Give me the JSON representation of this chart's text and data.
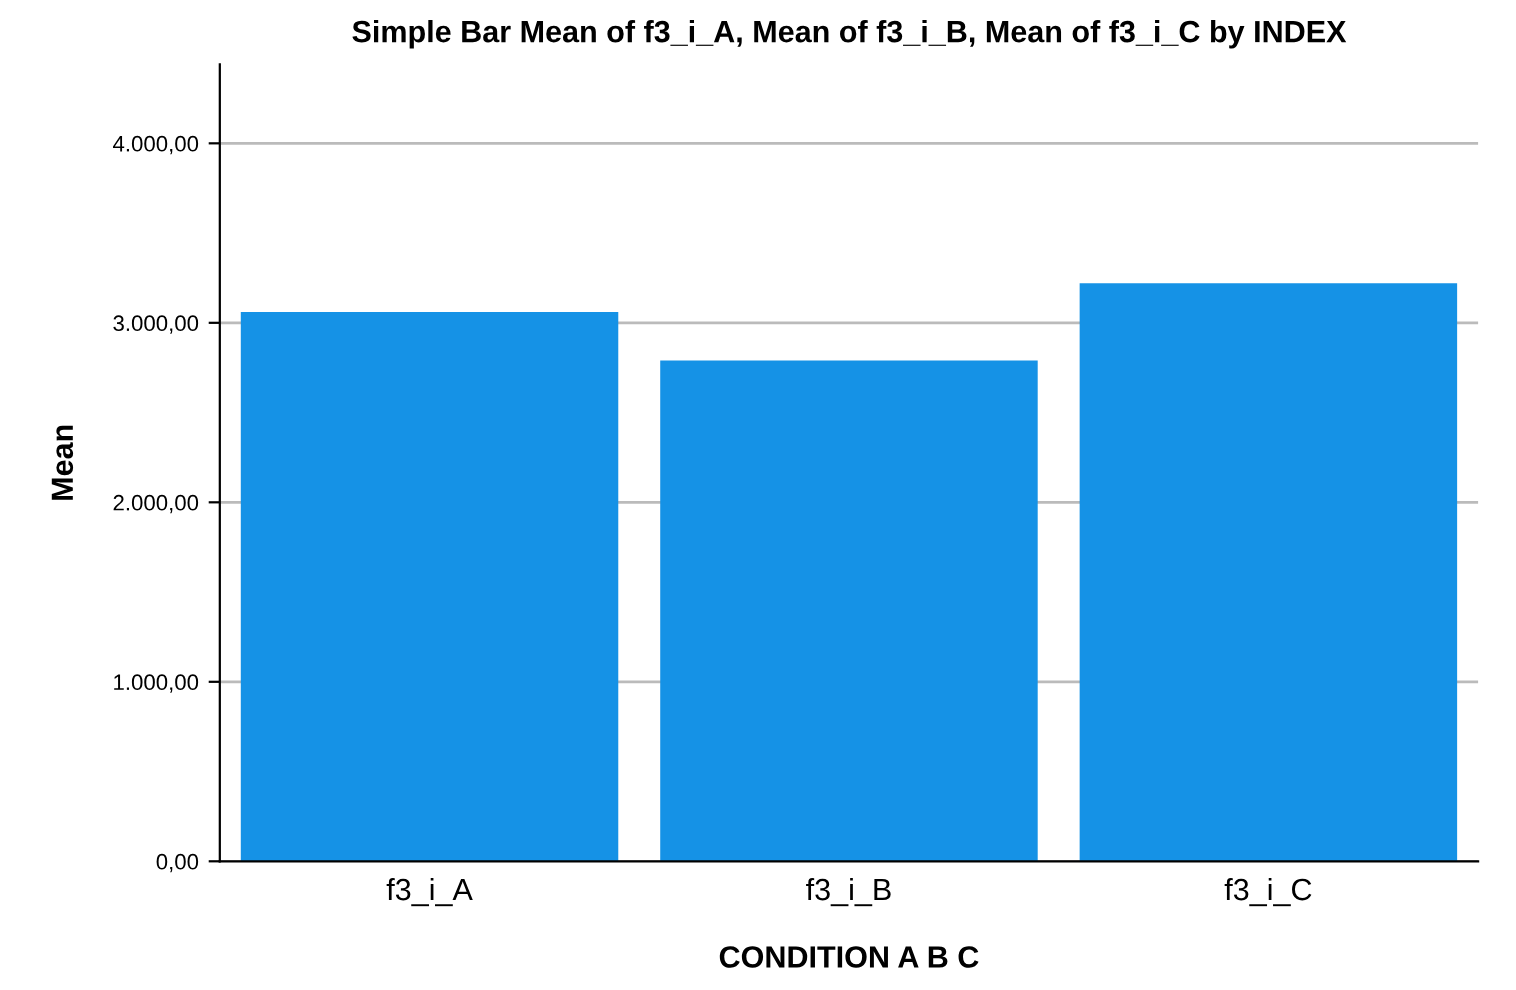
{
  "chart_data": {
    "type": "bar",
    "title": "Simple Bar Mean of f3_i_A, Mean of f3_i_B, Mean of f3_i_C by INDEX",
    "xlabel": "CONDITION A B C",
    "ylabel": "Mean",
    "categories": [
      "f3_i_A",
      "f3_i_B",
      "f3_i_C"
    ],
    "values": [
      3060,
      2790,
      3220
    ],
    "color": "#1592e6",
    "ylim": [
      0,
      4440
    ],
    "yticks": [
      {
        "value": 0,
        "label": "0,00"
      },
      {
        "value": 1000,
        "label": "1.000,00"
      },
      {
        "value": 2000,
        "label": "2.000,00"
      },
      {
        "value": 3000,
        "label": "3.000,00"
      },
      {
        "value": 4000,
        "label": "4.000,00"
      }
    ],
    "grid": "y"
  }
}
